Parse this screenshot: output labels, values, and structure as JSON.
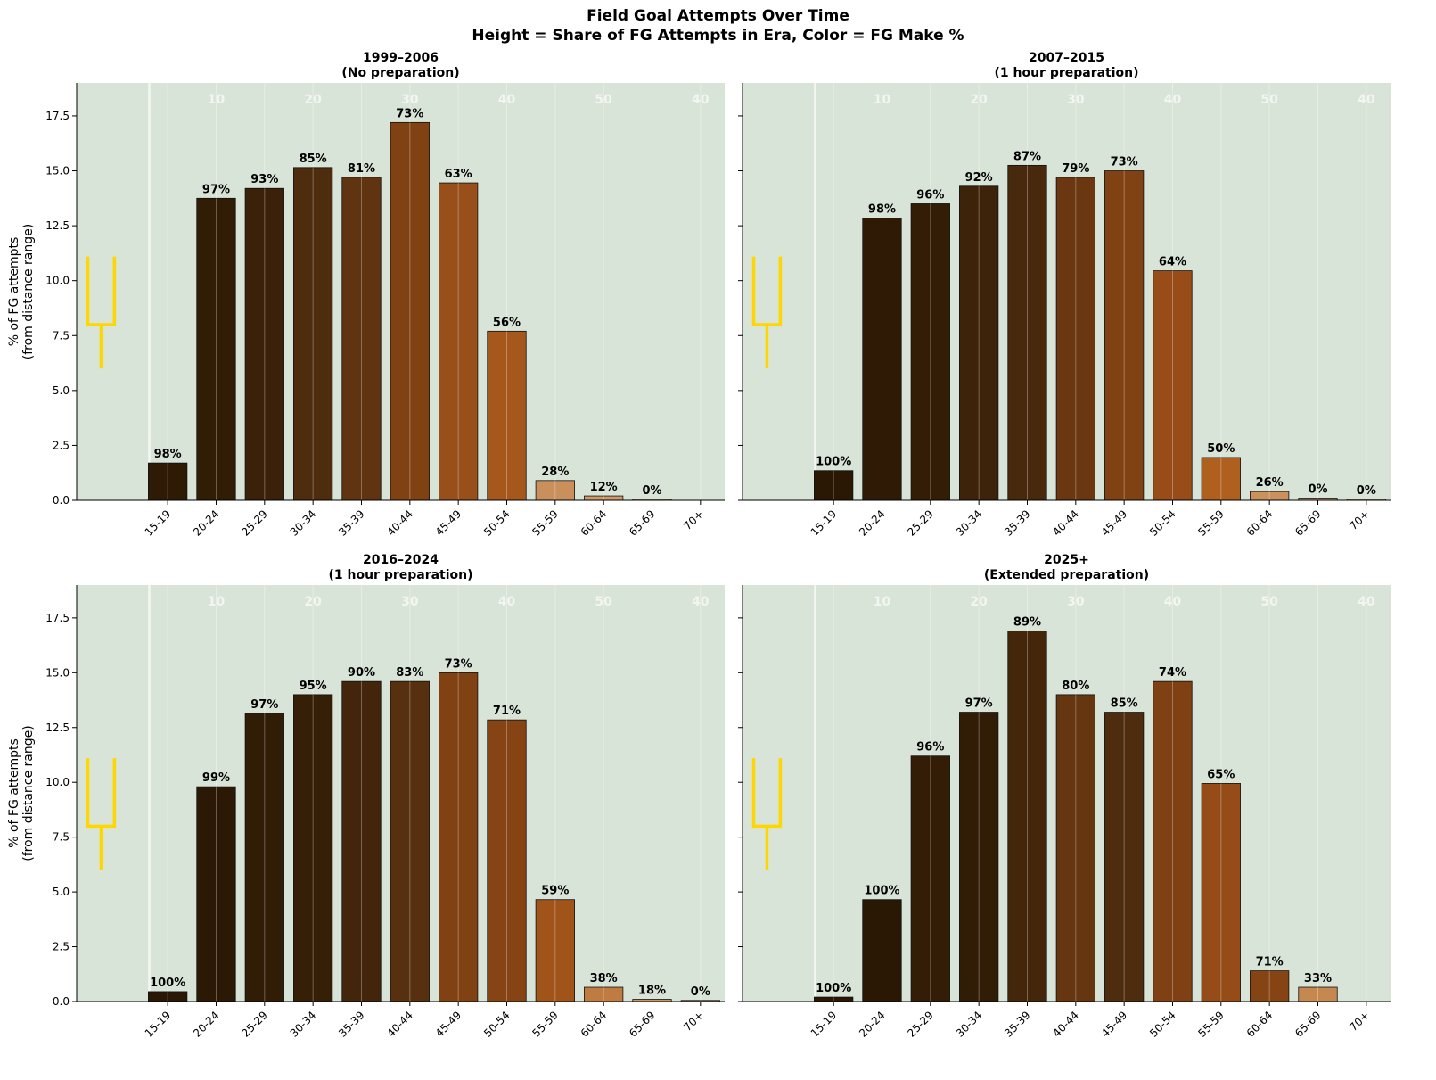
{
  "title": "Field Goal Attempts Over Time",
  "subtitle": "Height = Share of FG Attempts in Era, Color = FG Make %",
  "chart_data": [
    {
      "type": "bar",
      "title": "1999–2006",
      "subtitle": "(No preparation)",
      "ylabel": "% of FG attempts\n(from distance range)",
      "ylim": [
        0,
        19
      ],
      "categories": [
        "15-19",
        "20-24",
        "25-29",
        "30-34",
        "35-39",
        "40-44",
        "45-49",
        "50-54",
        "55-59",
        "60-64",
        "65-69",
        "70+"
      ],
      "values": [
        1.7,
        13.75,
        14.2,
        15.15,
        14.7,
        17.2,
        14.45,
        7.7,
        0.9,
        0.2,
        0.05,
        null
      ],
      "labels": [
        "98%",
        "97%",
        "93%",
        "85%",
        "81%",
        "73%",
        "63%",
        "56%",
        "28%",
        "12%",
        "0%",
        ""
      ],
      "make_pct": [
        98,
        97,
        93,
        85,
        81,
        73,
        63,
        56,
        28,
        12,
        0,
        null
      ]
    },
    {
      "type": "bar",
      "title": "2007–2015",
      "subtitle": "(1 hour preparation)",
      "ylabel": "",
      "ylim": [
        0,
        19
      ],
      "categories": [
        "15-19",
        "20-24",
        "25-29",
        "30-34",
        "35-39",
        "40-44",
        "45-49",
        "50-54",
        "55-59",
        "60-64",
        "65-69",
        "70+"
      ],
      "values": [
        1.35,
        12.85,
        13.5,
        14.3,
        15.25,
        14.7,
        15.0,
        10.45,
        1.95,
        0.4,
        0.1,
        0.05
      ],
      "labels": [
        "100%",
        "98%",
        "96%",
        "92%",
        "87%",
        "79%",
        "73%",
        "64%",
        "50%",
        "26%",
        "0%",
        "0%"
      ],
      "make_pct": [
        100,
        98,
        96,
        92,
        87,
        79,
        73,
        64,
        50,
        26,
        0,
        0
      ]
    },
    {
      "type": "bar",
      "title": "2016–2024",
      "subtitle": "(1 hour preparation)",
      "ylabel": "% of FG attempts\n(from distance range)",
      "ylim": [
        0,
        19
      ],
      "categories": [
        "15-19",
        "20-24",
        "25-29",
        "30-34",
        "35-39",
        "40-44",
        "45-49",
        "50-54",
        "55-59",
        "60-64",
        "65-69",
        "70+"
      ],
      "values": [
        0.45,
        9.8,
        13.15,
        14.0,
        14.6,
        14.6,
        15.0,
        12.85,
        4.65,
        0.65,
        0.1,
        0.05
      ],
      "labels": [
        "100%",
        "99%",
        "97%",
        "95%",
        "90%",
        "83%",
        "73%",
        "71%",
        "59%",
        "38%",
        "18%",
        "0%"
      ],
      "make_pct": [
        100,
        99,
        97,
        95,
        90,
        83,
        73,
        71,
        59,
        38,
        18,
        0
      ]
    },
    {
      "type": "bar",
      "title": "2025+",
      "subtitle": "(Extended preparation)",
      "ylabel": "",
      "ylim": [
        0,
        19
      ],
      "categories": [
        "15-19",
        "20-24",
        "25-29",
        "30-34",
        "35-39",
        "40-44",
        "45-49",
        "50-54",
        "55-59",
        "60-64",
        "65-69",
        "70+"
      ],
      "values": [
        0.2,
        4.65,
        11.2,
        13.2,
        16.9,
        14.0,
        13.2,
        14.6,
        9.95,
        1.4,
        0.65,
        null
      ],
      "labels": [
        "100%",
        "100%",
        "96%",
        "97%",
        "89%",
        "80%",
        "85%",
        "74%",
        "65%",
        "71%",
        "33%",
        ""
      ],
      "make_pct": [
        100,
        100,
        96,
        97,
        89,
        80,
        85,
        74,
        65,
        71,
        33,
        null
      ]
    }
  ],
  "yticks": [
    "0.0",
    "2.5",
    "5.0",
    "7.5",
    "10.0",
    "12.5",
    "15.0",
    "17.5"
  ],
  "yard_numbers": [
    "10",
    "20",
    "30",
    "40",
    "50",
    "40"
  ],
  "colors": {
    "field": "#d9e4d8",
    "goalpost": "#ffd700",
    "yard_text": "#f2f5f0"
  }
}
